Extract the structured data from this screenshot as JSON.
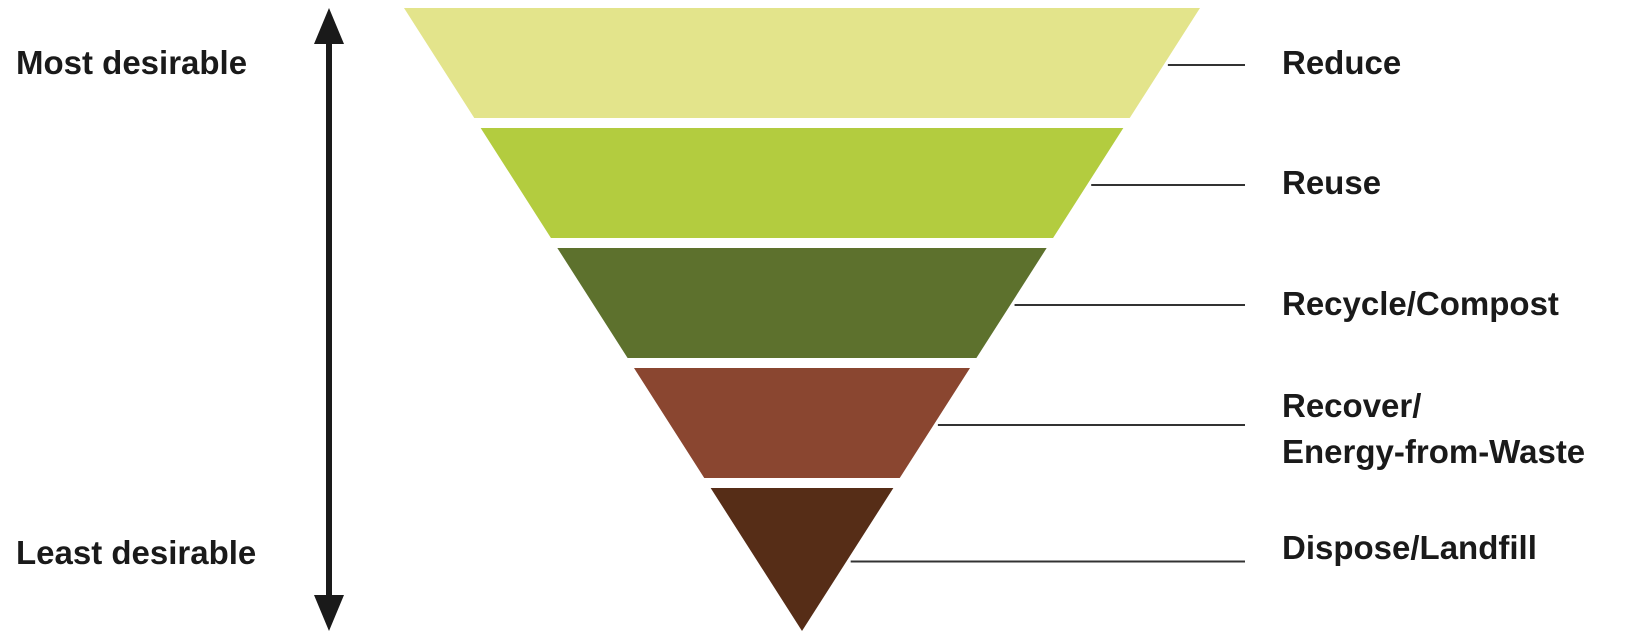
{
  "scale": {
    "top_label": "Most desirable",
    "bottom_label": "Least desirable"
  },
  "tiers": [
    {
      "name": "Reduce",
      "lines": [
        "Reduce"
      ],
      "color": "#e3e48b"
    },
    {
      "name": "Reuse",
      "lines": [
        "Reuse"
      ],
      "color": "#b3cc3f"
    },
    {
      "name": "Recycle/Compost",
      "lines": [
        "Recycle/Compost"
      ],
      "color": "#5d712d"
    },
    {
      "name": "Recover/Energy-from-Waste",
      "lines": [
        "Recover/",
        "Energy-from-Waste"
      ],
      "color": "#8a4630"
    },
    {
      "name": "Dispose/Landfill",
      "lines": [
        "Dispose/Landfill"
      ],
      "color": "#562d17"
    }
  ],
  "colors": {
    "text": "#1a1a1a",
    "arrow": "#1a1a1a",
    "leader_line": "#333333"
  }
}
